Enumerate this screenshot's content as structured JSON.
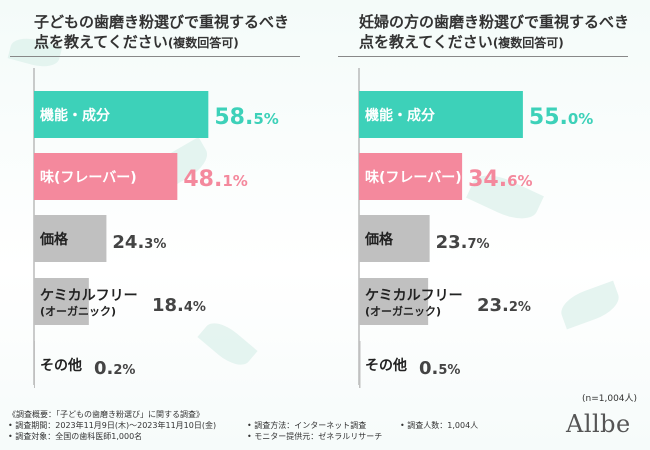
{
  "colors": {
    "functional": "#3dd1b9",
    "flavor": "#f4899d",
    "other": "#c0c0c0"
  },
  "chart_data": [
    {
      "type": "bar",
      "title_line1": "子どもの歯磨き粉選びで重視するべき",
      "title_line2": "点を教えてください",
      "title_note": "(複数回答可)",
      "categories": [
        {
          "line1": "機能・成分",
          "line2": ""
        },
        {
          "line1": "味(フレーバー)",
          "line2": ""
        },
        {
          "line1": "価格",
          "line2": ""
        },
        {
          "line1": "ケミカルフリー",
          "line2": "(オーガニック)"
        },
        {
          "line1": "その他",
          "line2": ""
        }
      ],
      "values": [
        58.5,
        48.1,
        24.3,
        18.4,
        0.2
      ],
      "value_labels": [
        {
          "int": "58.",
          "dec": "5%"
        },
        {
          "int": "48.",
          "dec": "1%"
        },
        {
          "int": "24.",
          "dec": "3%"
        },
        {
          "int": "18.",
          "dec": "4%"
        },
        {
          "int": "0.",
          "dec": "2%"
        }
      ],
      "xlim": [
        0,
        100
      ]
    },
    {
      "type": "bar",
      "title_line1": "妊婦の方の歯磨き粉選びで重視するべき",
      "title_line2": "点を教えてください",
      "title_note": "(複数回答可)",
      "categories": [
        {
          "line1": "機能・成分",
          "line2": ""
        },
        {
          "line1": "味(フレーバー)",
          "line2": ""
        },
        {
          "line1": "価格",
          "line2": ""
        },
        {
          "line1": "ケミカルフリー",
          "line2": "(オーガニック)"
        },
        {
          "line1": "その他",
          "line2": ""
        }
      ],
      "values": [
        55.0,
        34.6,
        23.7,
        23.2,
        0.5
      ],
      "value_labels": [
        {
          "int": "55.",
          "dec": "0%"
        },
        {
          "int": "34.",
          "dec": "6%"
        },
        {
          "int": "23.",
          "dec": "7%"
        },
        {
          "int": "23.",
          "dec": "2%"
        },
        {
          "int": "0.",
          "dec": "5%"
        }
      ],
      "xlim": [
        0,
        100
      ]
    }
  ],
  "sample_size": "(n=1,004人)",
  "survey": {
    "overview": "《調査概要：「子どもの歯磨き粉選び」に関する調査》",
    "period": "• 調査期間：2023年11月9日(木)～2023年11月10日(金)",
    "target": "• 調査対象：全国の歯科医師1,000名",
    "method": "• 調査方法：インターネット調査",
    "provider": "• モニター提供元：ゼネラルリサーチ",
    "count": "• 調査人数：1,004人"
  },
  "logo": "Allbe"
}
